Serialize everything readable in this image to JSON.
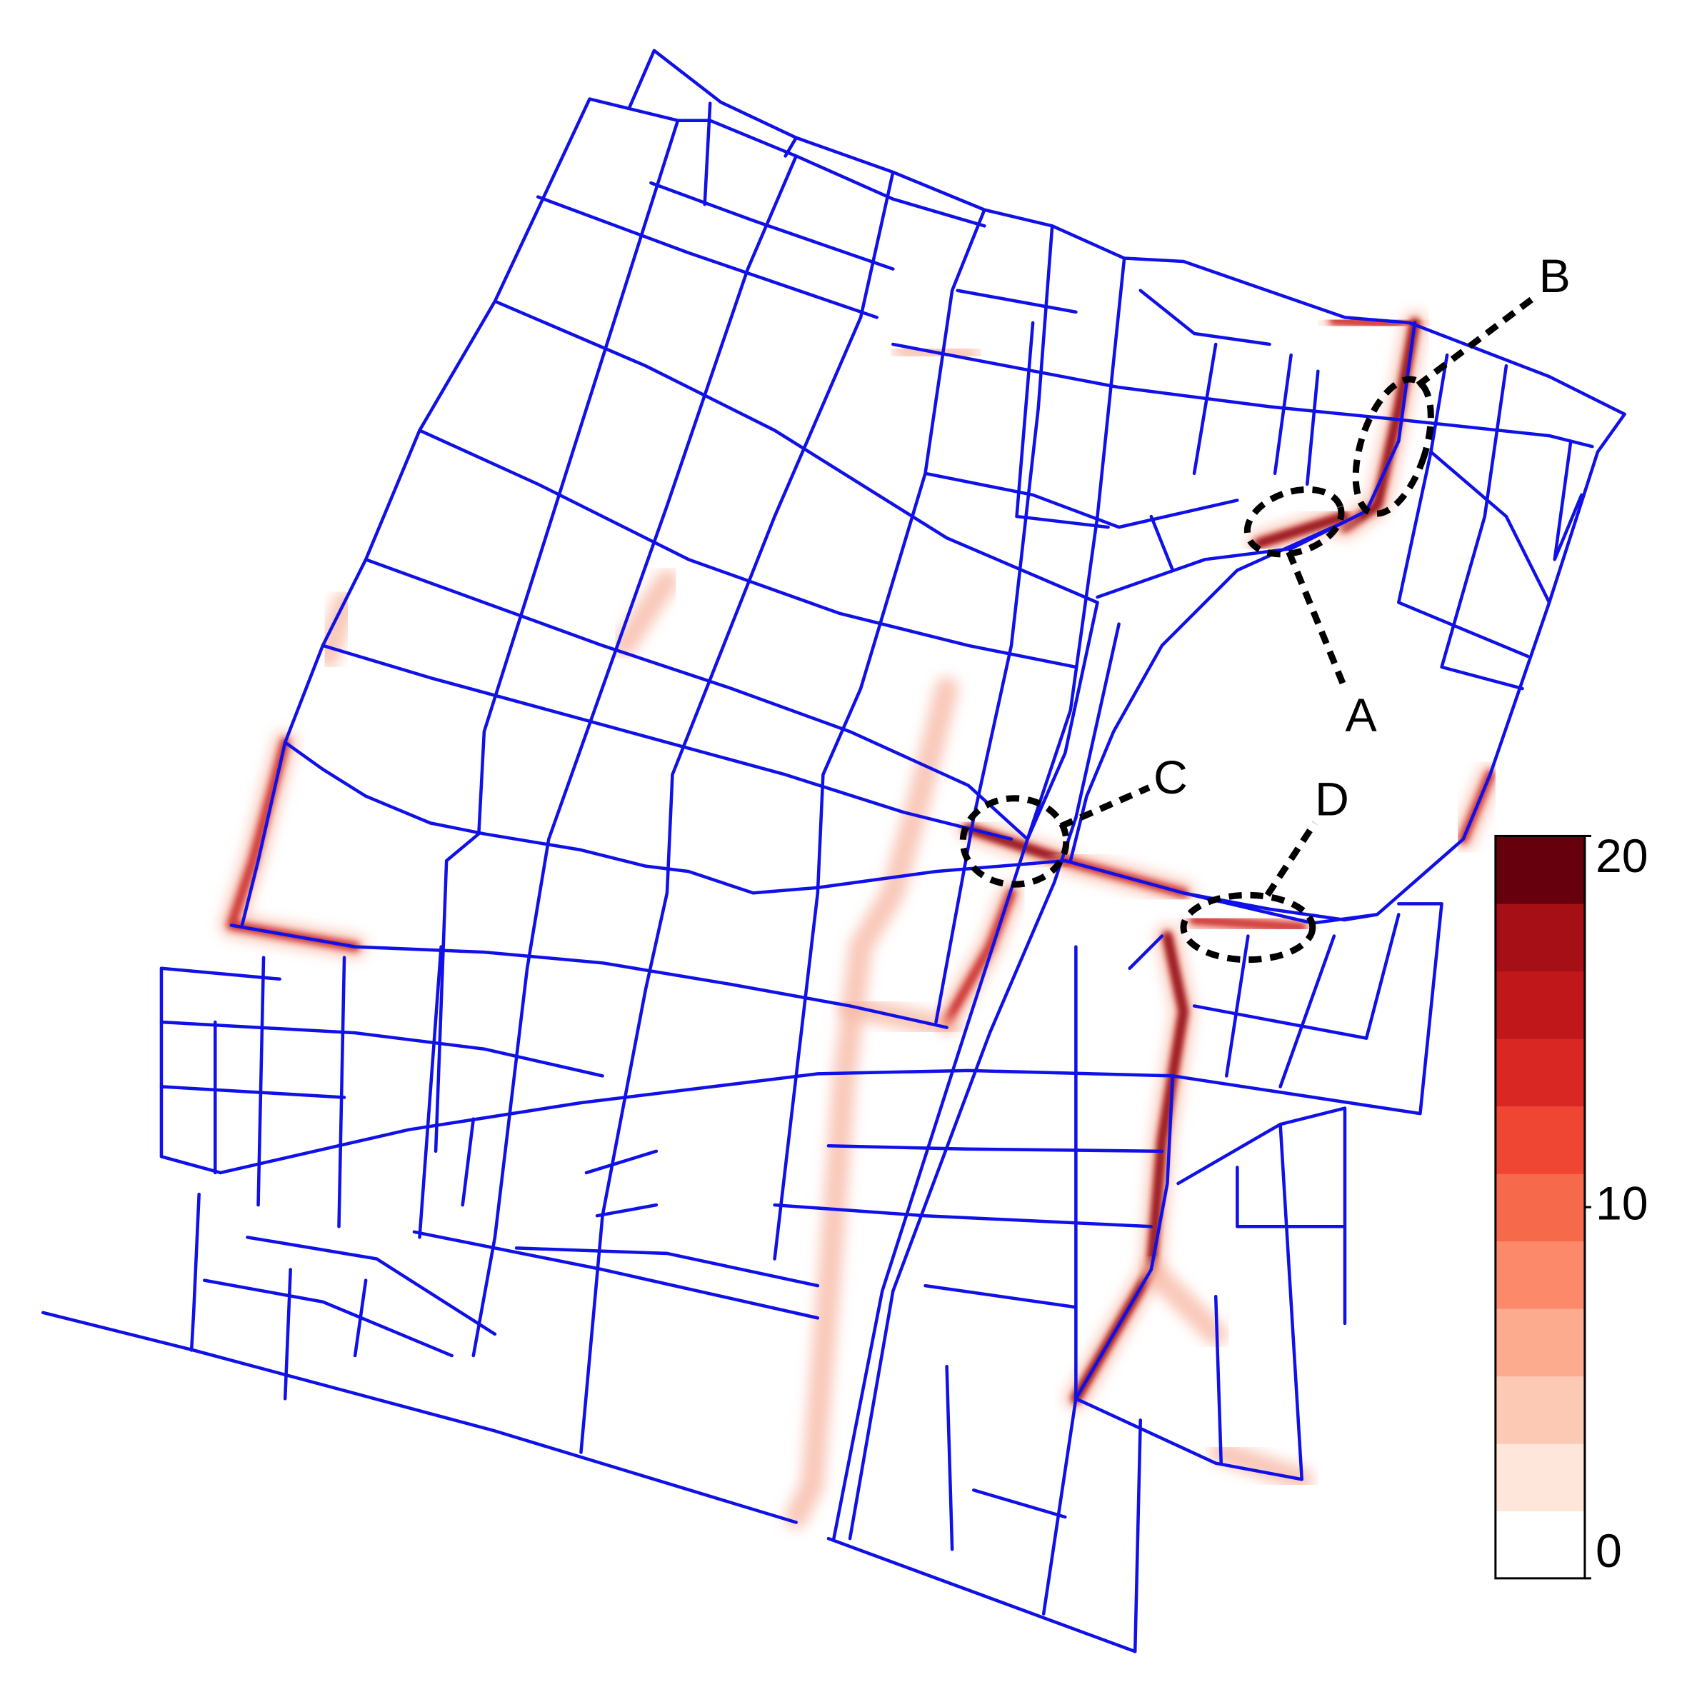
{
  "annotations": [
    {
      "label": "A"
    },
    {
      "label": "B"
    },
    {
      "label": "C"
    },
    {
      "label": "D"
    }
  ],
  "colorbar": {
    "lim": [
      0,
      20
    ],
    "ticks": [
      0,
      10,
      20
    ],
    "colors": [
      "#ffffff",
      "#fee6da",
      "#fcc9b4",
      "#fcab8f",
      "#fc8a6a",
      "#f6694b",
      "#ef4533",
      "#d92823",
      "#c0171b",
      "#a50f15",
      "#67000d"
    ]
  }
}
